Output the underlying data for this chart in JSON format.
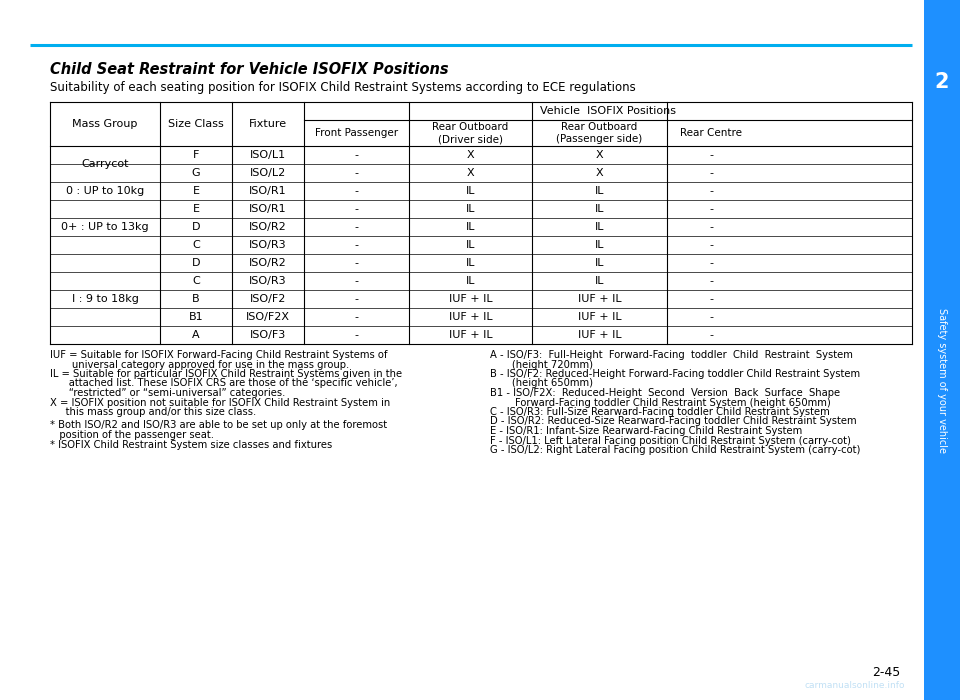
{
  "page_number": "2-45",
  "title": "Child Seat Restraint for Vehicle ISOFIX Positions",
  "subtitle": "Suitability of each seating position for ISOFIX Child Restraint Systems according to ECE regulations",
  "watermark": "carmanualsonline.info",
  "blue_line_color": "#00AEEF",
  "sidebar_color": "#1E90FF",
  "sidebar_text": "Safety system of your vehicle",
  "chapter_number": "2",
  "table_rows": [
    [
      "Carrycot",
      "F",
      "ISO/L1",
      "-",
      "X",
      "X",
      "-"
    ],
    [
      "Carrycot",
      "G",
      "ISO/L2",
      "-",
      "X",
      "X",
      "-"
    ],
    [
      "0 : UP to 10kg",
      "E",
      "ISO/R1",
      "-",
      "IL",
      "IL",
      "-"
    ],
    [
      "0+ : UP to 13kg",
      "E",
      "ISO/R1",
      "-",
      "IL",
      "IL",
      "-"
    ],
    [
      "0+ : UP to 13kg",
      "D",
      "ISO/R2",
      "-",
      "IL",
      "IL",
      "-"
    ],
    [
      "0+ : UP to 13kg",
      "C",
      "ISO/R3",
      "-",
      "IL",
      "IL",
      "-"
    ],
    [
      "I : 9 to 18kg",
      "D",
      "ISO/R2",
      "-",
      "IL",
      "IL",
      "-"
    ],
    [
      "I : 9 to 18kg",
      "C",
      "ISO/R3",
      "-",
      "IL",
      "IL",
      "-"
    ],
    [
      "I : 9 to 18kg",
      "B",
      "ISO/F2",
      "-",
      "IUF + IL",
      "IUF + IL",
      "-"
    ],
    [
      "I : 9 to 18kg",
      "B1",
      "ISO/F2X",
      "-",
      "IUF + IL",
      "IUF + IL",
      "-"
    ],
    [
      "I : 9 to 18kg",
      "A",
      "ISO/F3",
      "-",
      "IUF + IL",
      "IUF + IL",
      "-"
    ]
  ],
  "mass_group_spans": [
    [
      "Carrycot",
      0,
      1
    ],
    [
      "0 : UP to 10kg",
      2,
      2
    ],
    [
      "0+ : UP to 13kg",
      3,
      5
    ],
    [
      "I : 9 to 18kg",
      6,
      10
    ]
  ],
  "footnotes_left": [
    [
      "IUF = Suitable for ISOFIX Forward-Facing Child Restraint Systems of",
      false
    ],
    [
      "       universal category approved for use in the mass group.",
      false
    ],
    [
      "IL = Suitable for particular ISOFIX Child Restraint Systems given in the",
      false
    ],
    [
      "      attached list. These ISOFIX CRS are those of the ‘specific vehicle’,",
      false
    ],
    [
      "      “restricted” or “semi-universal” categories.",
      false
    ],
    [
      "X = ISOFIX position not suitable for ISOFIX Child Restraint System in",
      false
    ],
    [
      "     this mass group and/or this size class.",
      false
    ],
    [
      "",
      true
    ],
    [
      "* Both ISO/R2 and ISO/R3 are able to be set up only at the foremost",
      false
    ],
    [
      "   position of the passenger seat.",
      false
    ],
    [
      "* ISOFIX Child Restraint System size classes and fixtures",
      false
    ]
  ],
  "footnotes_right": [
    "A - ISO/F3:  Full-Height  Forward-Facing  toddler  Child  Restraint  System",
    "       (height 720mm)",
    "B - ISO/F2: Reduced-Height Forward-Facing toddler Child Restraint System",
    "       (height 650mm)",
    "B1 - ISO/F2X:  Reduced-Height  Second  Version  Back  Surface  Shape",
    "        Forward-Facing toddler Child Restraint System (height 650mm)",
    "C - ISO/R3: Full-Size Rearward-Facing toddler Child Restraint System",
    "D - ISO/R2: Reduced-Size Rearward-Facing toddler Child Restraint System",
    "E - ISO/R1: Infant-Size Rearward-Facing Child Restraint System",
    "F - ISO/L1: Left Lateral Facing position Child Restraint System (carry-cot)",
    "G - ISO/L2: Right Lateral Facing position Child Restraint System (carry-cot)"
  ],
  "bg_color": "#FFFFFF",
  "text_color": "#000000",
  "font_size_title": 10.5,
  "font_size_subtitle": 8.5,
  "font_size_header": 8.0,
  "font_size_body": 8.0,
  "font_size_footnote": 7.2
}
